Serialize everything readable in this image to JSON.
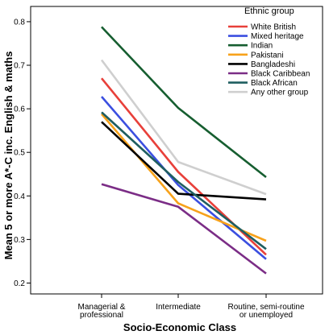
{
  "chart_data": {
    "type": "line",
    "xlabel": "Socio-Economic Class",
    "ylabel": "Mean 5 or more A*-C inc. English & maths",
    "categories": [
      [
        "Managerial &",
        "professional"
      ],
      [
        "Intermediate"
      ],
      [
        "Routine, semi-routine",
        "or unemployed"
      ]
    ],
    "ylim": [
      0.175,
      0.835
    ],
    "yticks": [
      "0.2",
      "0.3",
      "0.4",
      "0.5",
      "0.6",
      "0.7",
      "0.8"
    ],
    "ytick_values": [
      0.2,
      0.3,
      0.4,
      0.5,
      0.6,
      0.7,
      0.8
    ],
    "grid": false,
    "legend_title": "Ethnic group",
    "legend_position": "top-right",
    "series": [
      {
        "name": "White British",
        "color": "#e8403a",
        "values": [
          0.67,
          0.455,
          0.265
        ]
      },
      {
        "name": "Mixed heritage",
        "color": "#3b4fe0",
        "values": [
          0.628,
          0.425,
          0.255
        ]
      },
      {
        "name": "Indian",
        "color": "#165e30",
        "values": [
          0.788,
          0.602,
          0.443
        ]
      },
      {
        "name": "Pakistani",
        "color": "#f7a21b",
        "values": [
          0.588,
          0.383,
          0.297
        ]
      },
      {
        "name": "Bangladeshi",
        "color": "#000000",
        "values": [
          0.57,
          0.405,
          0.392
        ]
      },
      {
        "name": "Black Caribbean",
        "color": "#7b2d86",
        "values": [
          0.427,
          0.375,
          0.222
        ]
      },
      {
        "name": "Black African",
        "color": "#1f5e60",
        "values": [
          0.592,
          0.432,
          0.278
        ]
      },
      {
        "name": "Any other group",
        "color": "#cfcfcf",
        "values": [
          0.712,
          0.478,
          0.404
        ]
      }
    ]
  }
}
